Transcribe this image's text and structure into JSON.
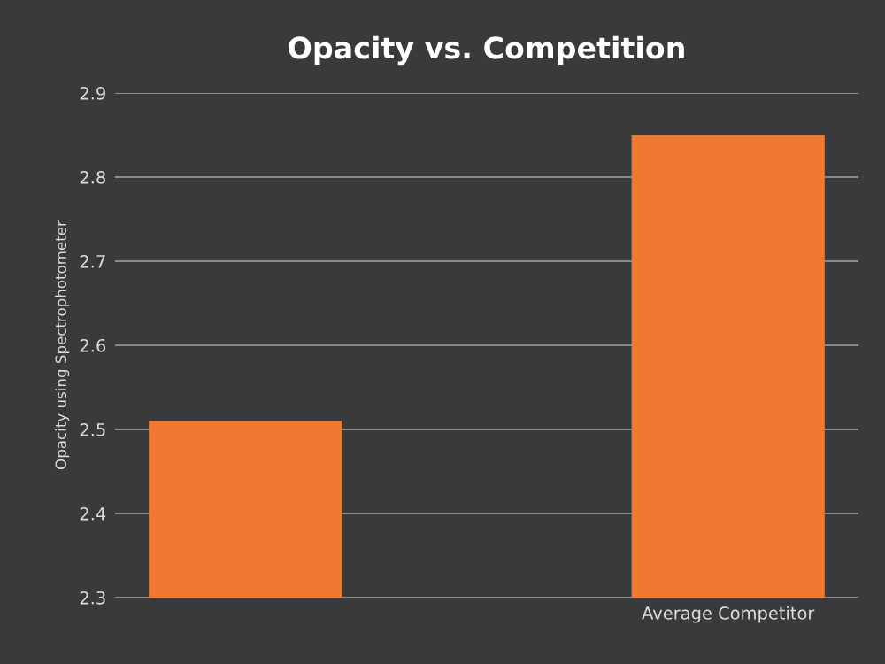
{
  "chart_data": {
    "type": "bar",
    "title": "Opacity vs. Competition",
    "ylabel": "Opacity using Spectrophotometer",
    "categories": [
      null,
      "Average Competitor"
    ],
    "values": [
      2.51,
      2.85
    ],
    "color": "#f07830",
    "ylim": [
      2.3,
      2.9
    ],
    "yticks": [
      2.3,
      2.4,
      2.5,
      2.6,
      2.7,
      2.8,
      2.9
    ],
    "grid": "y"
  }
}
